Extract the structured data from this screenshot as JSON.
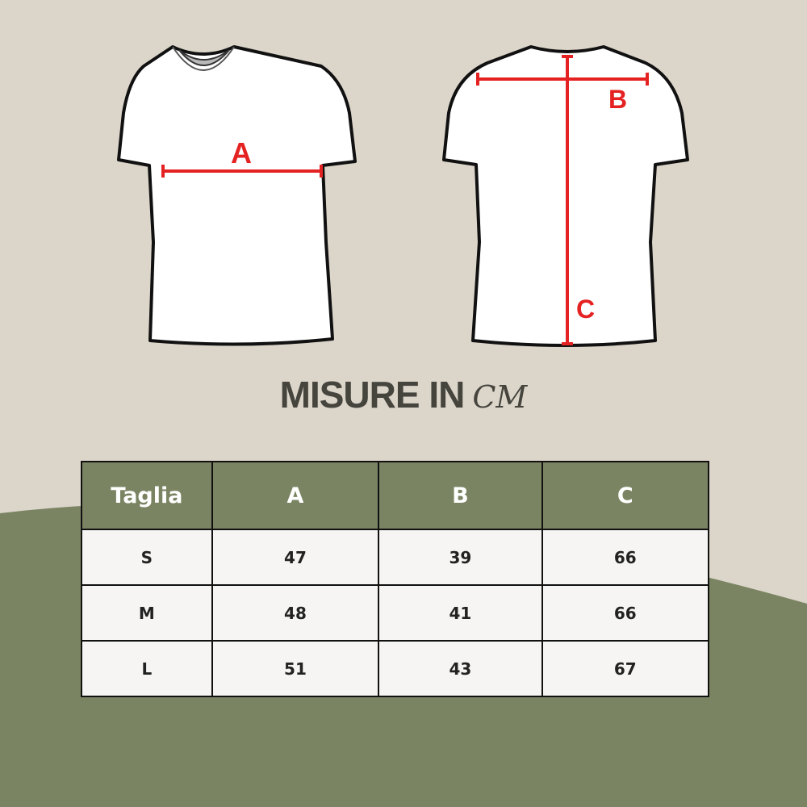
{
  "colors": {
    "background": "#dcd5ca",
    "green": "#7a8462",
    "measure_red": "#e52222",
    "text_dark": "#45443d"
  },
  "diagram": {
    "front_label": "A",
    "back_labels": [
      "B",
      "C"
    ]
  },
  "title": {
    "main": "MISURE IN",
    "unit": "CM"
  },
  "table": {
    "headers": [
      "Taglia",
      "A",
      "B",
      "C"
    ],
    "rows": [
      [
        "S",
        "47",
        "39",
        "66"
      ],
      [
        "M",
        "48",
        "41",
        "66"
      ],
      [
        "L",
        "51",
        "43",
        "67"
      ]
    ]
  }
}
